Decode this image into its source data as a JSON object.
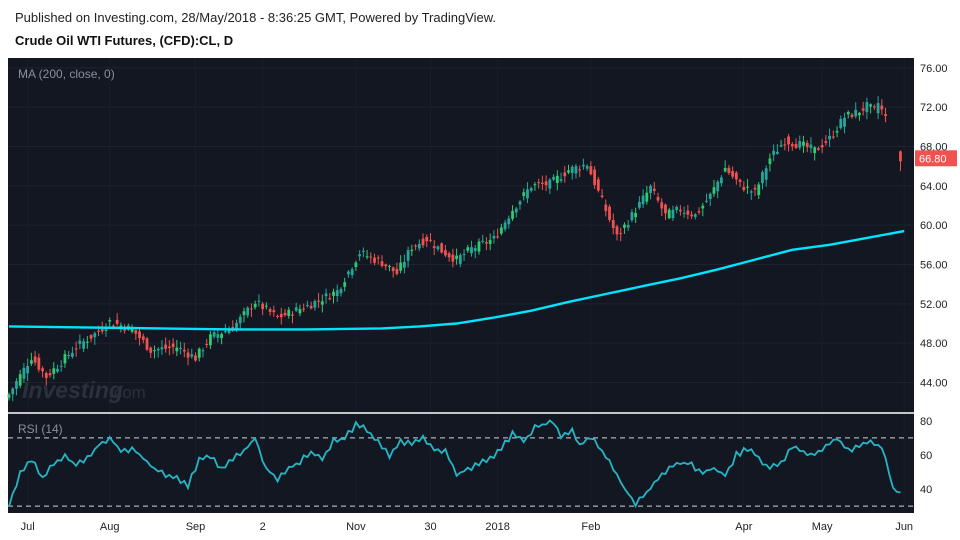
{
  "header": {
    "published": "Published on Investing.com, 28/May/2018 - 8:36:25 GMT, Powered by TradingView.",
    "symbol": "Crude Oil WTI Futures, (CFD):CL, D"
  },
  "watermark": {
    "brand": "Investing",
    "suffix": ".com"
  },
  "colors": {
    "background": "#131722",
    "up_candle": "#26a69a",
    "up_candle_alt": "#2ecc71",
    "down_candle": "#ef5350",
    "ma_line": "#00e5ff",
    "rsi_line": "#26b5c4",
    "last_price_badge": "#ef5350"
  },
  "chart_data": [
    {
      "type": "candlestick",
      "pane": "price",
      "indicator_label": "MA (200, close, 0)",
      "price_axis": {
        "ticks": [
          "76.00",
          "72.00",
          "68.00",
          "64.00",
          "60.00",
          "56.00",
          "52.00",
          "48.00",
          "44.00"
        ],
        "range": [
          41.0,
          77.0
        ]
      },
      "last_price": "66.80",
      "x_axis": {
        "ticks": [
          {
            "label": "Jul",
            "index": 5
          },
          {
            "label": "Aug",
            "index": 27
          },
          {
            "label": "Sep",
            "index": 50
          },
          {
            "label": "2",
            "index": 68
          },
          {
            "label": "Nov",
            "index": 93
          },
          {
            "label": "30",
            "index": 113
          },
          {
            "label": "2018",
            "index": 131
          },
          {
            "label": "Feb",
            "index": 156
          },
          {
            "label": "Apr",
            "index": 197
          },
          {
            "label": "May",
            "index": 218
          },
          {
            "label": "Jun",
            "index": 240
          }
        ]
      },
      "close_anchors": [
        [
          0,
          42.8
        ],
        [
          6,
          46.6
        ],
        [
          10,
          44.6
        ],
        [
          18,
          47.6
        ],
        [
          24,
          49.2
        ],
        [
          27,
          50.2
        ],
        [
          33,
          49.4
        ],
        [
          38,
          47.3
        ],
        [
          45,
          47.6
        ],
        [
          50,
          46.5
        ],
        [
          54,
          48.6
        ],
        [
          60,
          49.6
        ],
        [
          66,
          52.2
        ],
        [
          72,
          50.6
        ],
        [
          80,
          51.8
        ],
        [
          88,
          53.3
        ],
        [
          94,
          57.2
        ],
        [
          100,
          56.2
        ],
        [
          104,
          55.1
        ],
        [
          108,
          57.8
        ],
        [
          112,
          58.6
        ],
        [
          116,
          57.4
        ],
        [
          120,
          56.5
        ],
        [
          124,
          57.6
        ],
        [
          130,
          58.6
        ],
        [
          135,
          61.6
        ],
        [
          140,
          64.0
        ],
        [
          145,
          64.2
        ],
        [
          150,
          65.6
        ],
        [
          155,
          66.2
        ],
        [
          160,
          61.5
        ],
        [
          163,
          58.8
        ],
        [
          167,
          61.0
        ],
        [
          172,
          63.8
        ],
        [
          176,
          61.0
        ],
        [
          180,
          61.6
        ],
        [
          184,
          61.0
        ],
        [
          188,
          63.0
        ],
        [
          192,
          65.8
        ],
        [
          196,
          64.1
        ],
        [
          200,
          63.3
        ],
        [
          204,
          66.8
        ],
        [
          208,
          68.6
        ],
        [
          212,
          68.2
        ],
        [
          216,
          67.6
        ],
        [
          220,
          68.8
        ],
        [
          224,
          71.0
        ],
        [
          228,
          71.6
        ],
        [
          230,
          72.1
        ],
        [
          232,
          71.6
        ],
        [
          233,
          72.4
        ],
        [
          235,
          70.9
        ]
      ],
      "gap_candles": [
        {
          "index": 239,
          "open": 67.5,
          "close": 66.5,
          "high": 67.6,
          "low": 65.5
        }
      ],
      "ma_200": {
        "x": [
          0,
          20,
          40,
          60,
          80,
          100,
          110,
          120,
          130,
          140,
          150,
          160,
          170,
          180,
          190,
          200,
          210,
          220,
          230,
          240
        ],
        "values": [
          49.7,
          49.6,
          49.5,
          49.4,
          49.4,
          49.5,
          49.7,
          50.0,
          50.6,
          51.3,
          52.2,
          53.0,
          53.8,
          54.6,
          55.5,
          56.5,
          57.5,
          58.0,
          58.7,
          59.4
        ]
      }
    },
    {
      "type": "line",
      "pane": "rsi",
      "indicator_label": "RSI (14)",
      "y_axis": {
        "ticks": [
          "80",
          "60",
          "40"
        ],
        "range": [
          26,
          84
        ],
        "levels": [
          70,
          30
        ]
      },
      "anchors": [
        [
          0,
          30
        ],
        [
          3,
          50
        ],
        [
          6,
          58
        ],
        [
          9,
          46
        ],
        [
          12,
          55
        ],
        [
          15,
          60
        ],
        [
          18,
          54
        ],
        [
          21,
          58
        ],
        [
          24,
          66
        ],
        [
          27,
          70
        ],
        [
          30,
          62
        ],
        [
          33,
          64
        ],
        [
          36,
          58
        ],
        [
          39,
          52
        ],
        [
          42,
          48
        ],
        [
          45,
          46
        ],
        [
          48,
          42
        ],
        [
          51,
          58
        ],
        [
          54,
          60
        ],
        [
          57,
          52
        ],
        [
          60,
          58
        ],
        [
          63,
          62
        ],
        [
          66,
          70
        ],
        [
          69,
          52
        ],
        [
          72,
          46
        ],
        [
          75,
          52
        ],
        [
          78,
          56
        ],
        [
          81,
          62
        ],
        [
          84,
          58
        ],
        [
          87,
          68
        ],
        [
          90,
          70
        ],
        [
          93,
          78
        ],
        [
          96,
          75
        ],
        [
          99,
          68
        ],
        [
          102,
          60
        ],
        [
          105,
          68
        ],
        [
          108,
          66
        ],
        [
          111,
          70
        ],
        [
          114,
          64
        ],
        [
          117,
          62
        ],
        [
          120,
          48
        ],
        [
          123,
          52
        ],
        [
          126,
          55
        ],
        [
          129,
          58
        ],
        [
          132,
          64
        ],
        [
          135,
          72
        ],
        [
          138,
          68
        ],
        [
          141,
          76
        ],
        [
          144,
          78
        ],
        [
          146,
          80
        ],
        [
          148,
          70
        ],
        [
          151,
          74
        ],
        [
          153,
          66
        ],
        [
          156,
          70
        ],
        [
          159,
          62
        ],
        [
          162,
          52
        ],
        [
          165,
          40
        ],
        [
          168,
          32
        ],
        [
          171,
          38
        ],
        [
          174,
          46
        ],
        [
          177,
          52
        ],
        [
          180,
          56
        ],
        [
          183,
          54
        ],
        [
          186,
          50
        ],
        [
          189,
          52
        ],
        [
          192,
          48
        ],
        [
          195,
          60
        ],
        [
          198,
          64
        ],
        [
          201,
          58
        ],
        [
          204,
          52
        ],
        [
          207,
          56
        ],
        [
          210,
          64
        ],
        [
          213,
          62
        ],
        [
          216,
          60
        ],
        [
          219,
          66
        ],
        [
          222,
          70
        ],
        [
          225,
          62
        ],
        [
          228,
          66
        ],
        [
          231,
          68
        ],
        [
          234,
          64
        ],
        [
          236,
          50
        ],
        [
          237,
          40
        ],
        [
          239,
          38
        ]
      ]
    }
  ]
}
